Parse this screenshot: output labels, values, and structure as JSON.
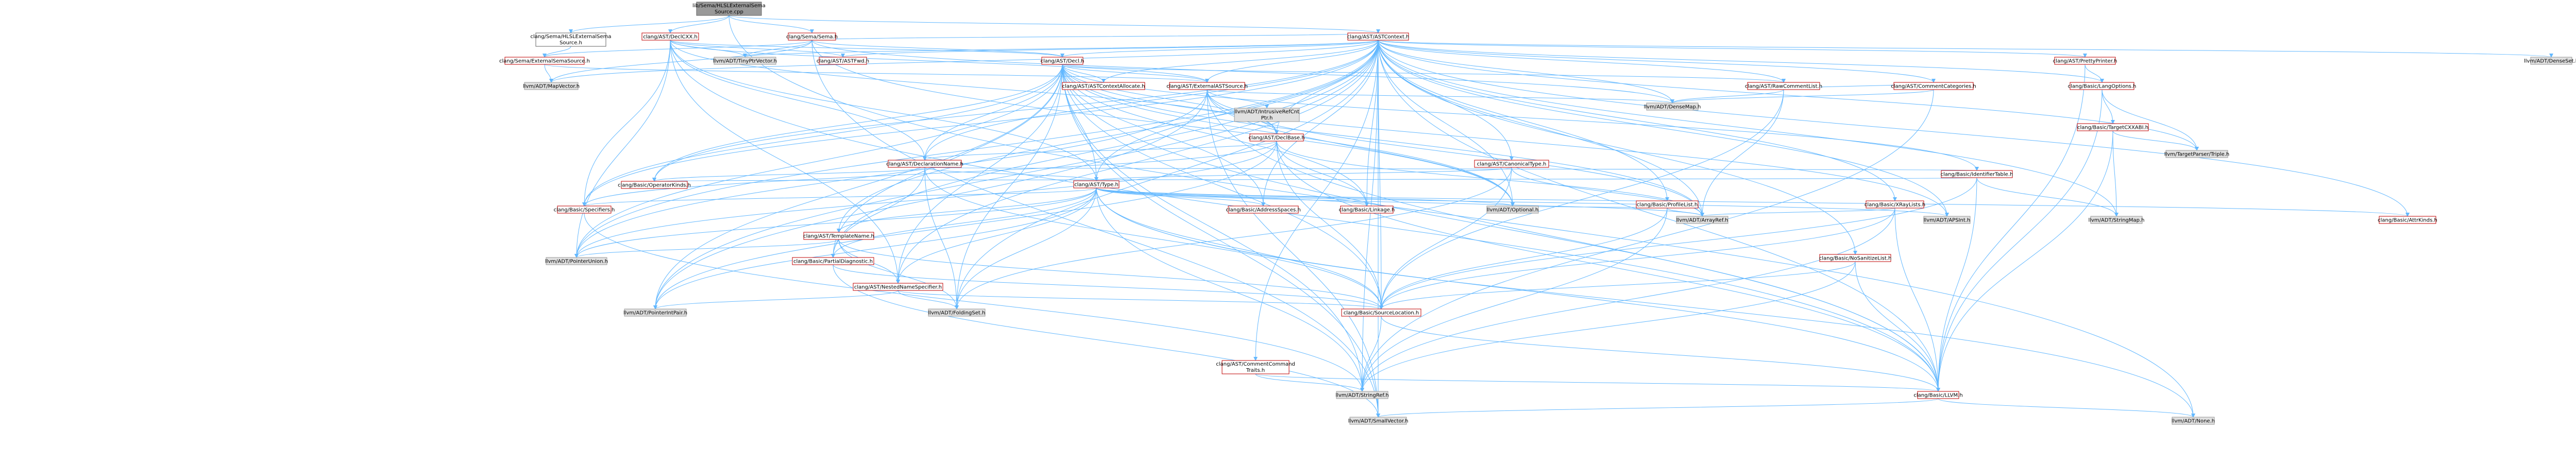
{
  "title": "lib/Sema/HLSLExternalSemaSource.cpp",
  "colors": {
    "edge": "#63b8ff",
    "internal_border": "#bf0000",
    "external_fill": "#e0e0e0",
    "root_fill": "#999999"
  },
  "nodes": {
    "root": {
      "label1": "lib/Sema/HLSLExternalSema",
      "label2": "Source.cpp"
    },
    "hlsl_h": {
      "label1": "clang/Sema/HLSLExternalSema",
      "label2": "Source.h"
    },
    "declcxx": {
      "label": "clang/AST/DeclCXX.h"
    },
    "sema": {
      "label": "clang/Sema/Sema.h"
    },
    "astcontext": {
      "label": "clang/AST/ASTContext.h"
    },
    "extsemasrc": {
      "label": "clang/Sema/ExternalSemaSource.h"
    },
    "tinyptr": {
      "label": "llvm/ADT/TinyPtrVector.h"
    },
    "astfwd": {
      "label": "clang/AST/ASTFwd.h"
    },
    "decl": {
      "label": "clang/AST/Decl.h"
    },
    "densemapinfo": {
      "label": "llvm/ADT/DenseSet.h"
    },
    "prettyprinter": {
      "label": "clang/AST/PrettyPrinter.h"
    },
    "mapvector": {
      "label": "llvm/ADT/MapVector.h"
    },
    "ctxalloc": {
      "label": "clang/AST/ASTContextAllocate.h"
    },
    "extastsrc": {
      "label": "clang/AST/ExternalASTSource.h"
    },
    "rawcomment": {
      "label": "clang/AST/RawCommentList.h"
    },
    "commentcat": {
      "label": "clang/AST/CommentCategories.h"
    },
    "langopts": {
      "label": "clang/Basic/LangOptions.h"
    },
    "densemap": {
      "label": "llvm/ADT/DenseMap.h"
    },
    "unionptr1": {
      "label": "llvm/ADT/IntrusiveRefCnt",
      "label2": "Ptr.h"
    },
    "declbase": {
      "label": "clang/AST/DeclBase.h"
    },
    "targetcxxabi": {
      "label": "clang/Basic/TargetCXXABI.h"
    },
    "triple": {
      "label": "llvm/TargetParser/Triple.h"
    },
    "declname": {
      "label": "clang/AST/DeclarationName.h"
    },
    "canontype": {
      "label": "clang/AST/CanonicalType.h"
    },
    "profilelist": {
      "label": "clang/Basic/ProfileList.h"
    },
    "xraylists": {
      "label": "clang/Basic/XRayLists.h"
    },
    "identtable": {
      "label": "clang/Basic/IdentifierTable.h"
    },
    "opkinds": {
      "label": "clang/Basic/OperatorKinds.h"
    },
    "type": {
      "label": "clang/AST/Type.h"
    },
    "specifiers": {
      "label": "clang/Basic/Specifiers.h"
    },
    "addrspaces": {
      "label": "clang/Basic/AddressSpaces.h"
    },
    "linkage": {
      "label": "clang/Basic/Linkage.h"
    },
    "optional": {
      "label": "llvm/ADT/Optional.h"
    },
    "arrayref": {
      "label": "llvm/ADT/ArrayRef.h"
    },
    "apsint": {
      "label": "llvm/ADT/APSInt.h"
    },
    "stringmap": {
      "label": "llvm/ADT/StringMap.h"
    },
    "attrkinds": {
      "label": "clang/Basic/AttrKinds.h"
    },
    "templatename": {
      "label": "clang/AST/TemplateName.h"
    },
    "ptrunion": {
      "label": "llvm/ADT/PointerUnion.h"
    },
    "partialdiag": {
      "label": "clang/Basic/PartialDiagnostic.h"
    },
    "nestedname": {
      "label": "clang/AST/NestedNameSpecifier.h"
    },
    "ptrintpair": {
      "label": "llvm/ADT/PointerIntPair.h"
    },
    "foldingset": {
      "label": "llvm/ADT/FoldingSet.h"
    },
    "nosanitize": {
      "label": "clang/Basic/NoSanitizeList.h"
    },
    "sourceloc": {
      "label": "clang/Basic/SourceLocation.h"
    },
    "commentcmd": {
      "label1": "clang/AST/CommentCommand",
      "label2": "Traits.h"
    },
    "stringref": {
      "label": "llvm/ADT/StringRef.h"
    },
    "llvm_h": {
      "label": "clang/Basic/LLVM.h"
    },
    "smallvector": {
      "label": "llvm/ADT/SmallVector.h"
    },
    "none": {
      "label": "llvm/ADT/None.h"
    }
  }
}
